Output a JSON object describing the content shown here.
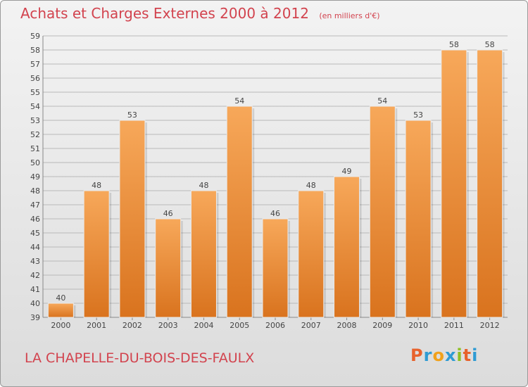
{
  "header": {
    "title": "Achats et Charges Externes 2000 à 2012",
    "unit": "(en milliers d'€)"
  },
  "footer": {
    "commune": "LA CHAPELLE-DU-BOIS-DES-FAULX",
    "brand": "Proxiti",
    "brand_colors": [
      "#e8622c",
      "#2f9bd3",
      "#f1a11b",
      "#2f9bd3",
      "#8fbf23",
      "#e8622c",
      "#2f9bd3"
    ]
  },
  "colors": {
    "bar_top": "#f7a85a",
    "bar_bottom": "#d9731e",
    "title": "#d2434e",
    "grid": "#b9b9b9"
  },
  "chart_data": {
    "type": "bar",
    "title": "Achats et Charges Externes 2000 à 2012",
    "subtitle": "(en milliers d'€)",
    "categories": [
      "2000",
      "2001",
      "2002",
      "2003",
      "2004",
      "2005",
      "2006",
      "2007",
      "2008",
      "2009",
      "2010",
      "2011",
      "2012"
    ],
    "values": [
      40,
      48,
      53,
      46,
      48,
      54,
      46,
      48,
      49,
      54,
      53,
      58,
      58
    ],
    "ylim": [
      39,
      59
    ],
    "yticks": [
      39,
      40,
      41,
      42,
      43,
      44,
      45,
      46,
      47,
      48,
      49,
      50,
      51,
      52,
      53,
      54,
      55,
      56,
      57,
      58,
      59
    ],
    "grid": true,
    "data_labels": true
  }
}
